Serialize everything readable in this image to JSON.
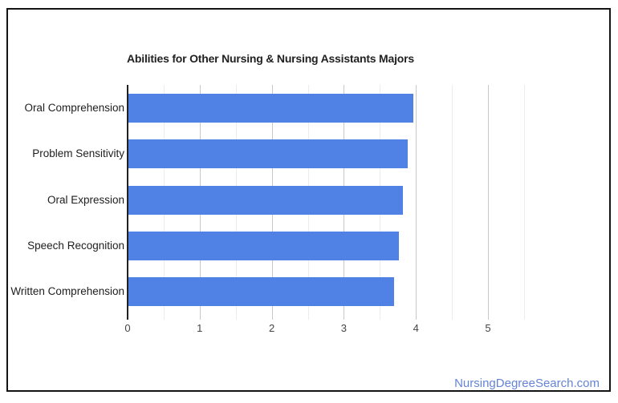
{
  "watermark": {
    "text": "NursingDegreeSearch.com",
    "color": "#6484d6"
  },
  "chart_data": {
    "type": "bar",
    "orientation": "horizontal",
    "title": "Abilities for Other Nursing & Nursing Assistants Majors",
    "categories": [
      "Oral Comprehension",
      "Problem Sensitivity",
      "Oral Expression",
      "Speech Recognition",
      "Written Comprehension"
    ],
    "values": [
      3.95,
      3.88,
      3.81,
      3.75,
      3.69
    ],
    "xlabel": "",
    "ylabel": "",
    "xlim": [
      0,
      5.5
    ],
    "x_ticks": [
      0,
      1,
      2,
      3,
      4,
      5
    ],
    "minor_tick_step": 0.5,
    "grid": true,
    "legend": "none",
    "bar_color": "#4F82E4",
    "axis_color": "#212121",
    "major_grid_color": "#c8c8c8",
    "minor_grid_color": "#ececec"
  }
}
